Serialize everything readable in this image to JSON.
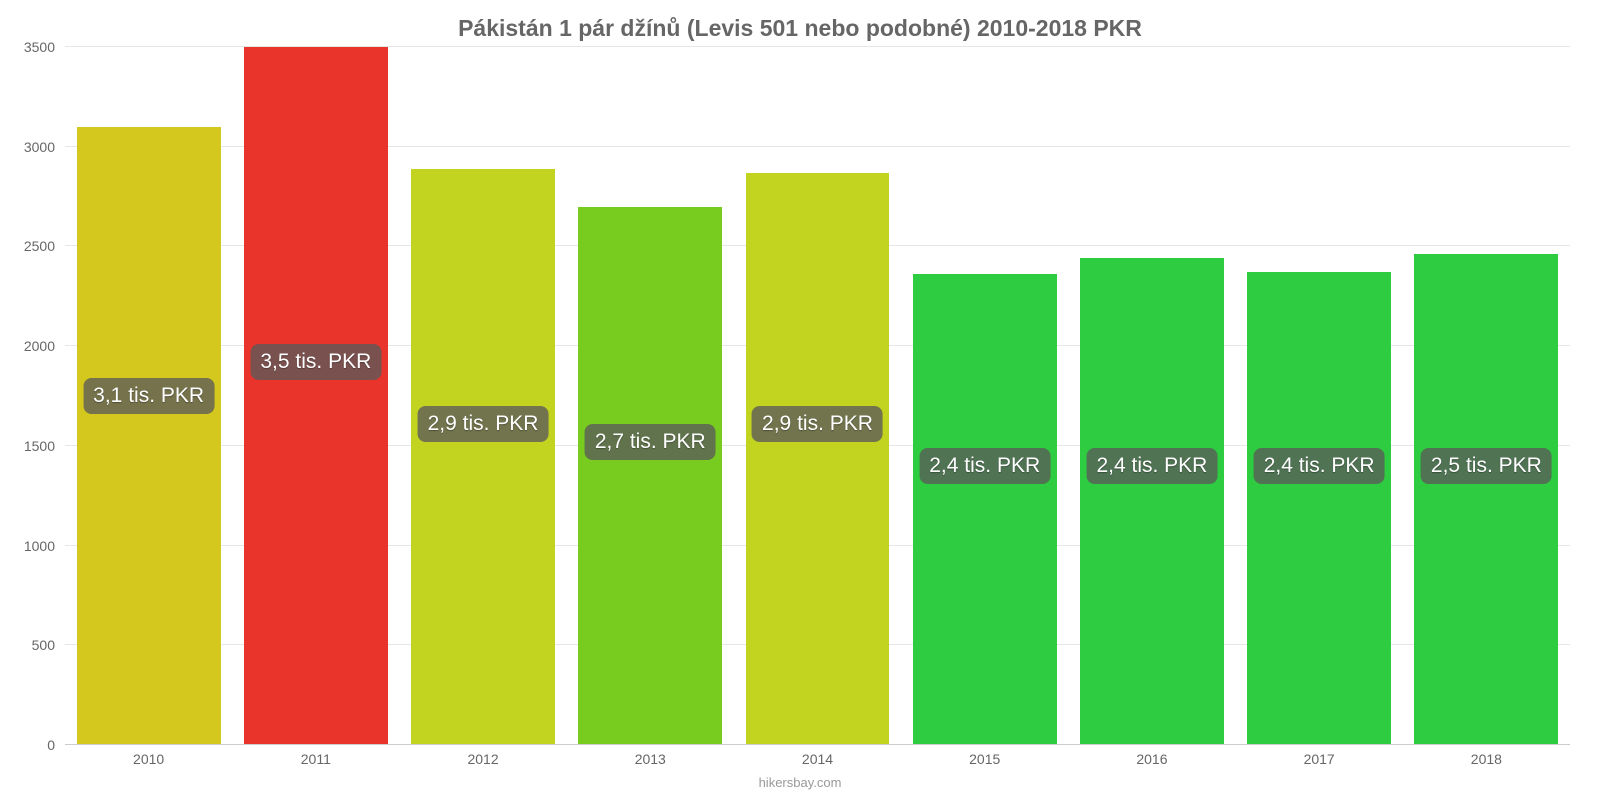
{
  "chart": {
    "type": "bar",
    "title": "Pákistán 1 pár džínů (Levis 501 nebo podobné) 2010-2018 PKR",
    "title_color": "#666666",
    "title_fontsize": 23,
    "background_color": "#ffffff",
    "grid_color": "#e6e6e6",
    "axis_text_color": "#666666",
    "axis_fontsize": 14,
    "ylim_min": 0,
    "ylim_max": 3500,
    "ytick_step": 500,
    "yticks": [
      0,
      500,
      1000,
      1500,
      2000,
      2500,
      3000,
      3500
    ],
    "categories": [
      "2010",
      "2011",
      "2012",
      "2013",
      "2014",
      "2015",
      "2016",
      "2017",
      "2018"
    ],
    "values": [
      3100,
      3500,
      2890,
      2700,
      2870,
      2360,
      2440,
      2370,
      2460
    ],
    "bar_colors": [
      "#d4c81e",
      "#e8342a",
      "#c2d320",
      "#77cc1f",
      "#c2d320",
      "#2ecc40",
      "#2ecc40",
      "#2ecc40",
      "#2ecc40"
    ],
    "bar_width": 0.86,
    "labels": [
      "3,1 tis. PKR",
      "3,5 tis. PKR",
      "2,9 tis. PKR",
      "2,7 tis. PKR",
      "2,9 tis. PKR",
      "2,4 tis. PKR",
      "2,4 tis. PKR",
      "2,4 tis. PKR",
      "2,5 tis. PKR"
    ],
    "label_y_values": [
      1750,
      1920,
      1610,
      1520,
      1610,
      1400,
      1400,
      1400,
      1400
    ],
    "label_bg": "rgba(90,90,90,0.78)",
    "label_color": "#ffffff",
    "label_fontsize": 21,
    "source": "hikersbay.com",
    "source_color": "#999999"
  }
}
